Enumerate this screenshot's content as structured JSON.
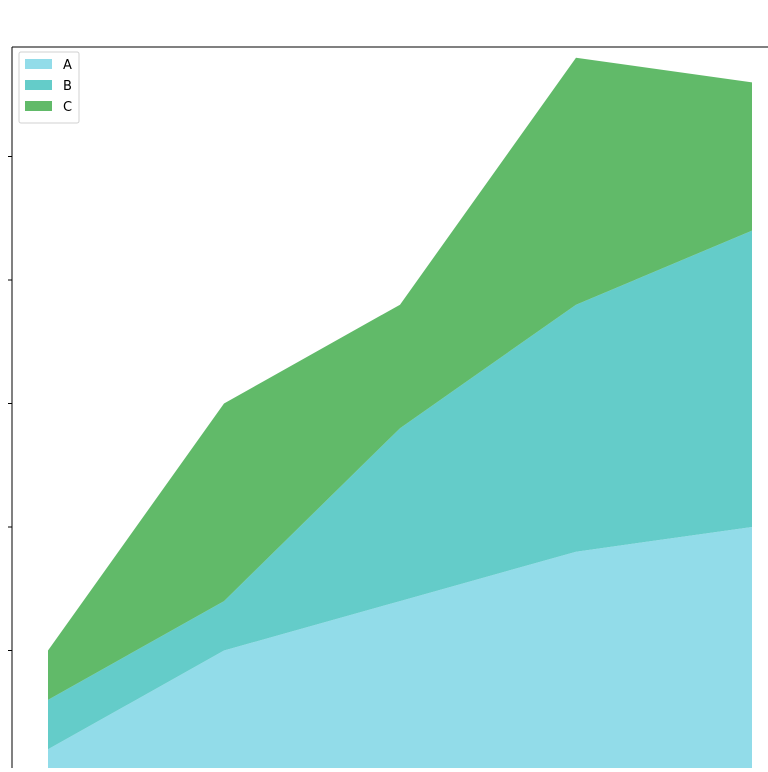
{
  "chart_data": {
    "type": "area",
    "stacked": true,
    "x": [
      1,
      2,
      3,
      4,
      5
    ],
    "series": [
      {
        "name": "A",
        "values": [
          1,
          5,
          7,
          9,
          10
        ],
        "color": "#92dce9"
      },
      {
        "name": "B",
        "values": [
          2,
          2,
          7,
          10,
          12
        ],
        "color": "#64ccc9"
      },
      {
        "name": "C",
        "values": [
          2,
          8,
          5,
          10,
          6
        ],
        "color": "#61ba69"
      }
    ],
    "ylim": [
      -4,
      29
    ],
    "xlim": [
      0.8,
      5.1
    ],
    "grid": false,
    "legend": {
      "position": "top-left"
    },
    "title": "",
    "xlabel": "",
    "ylabel": ""
  }
}
